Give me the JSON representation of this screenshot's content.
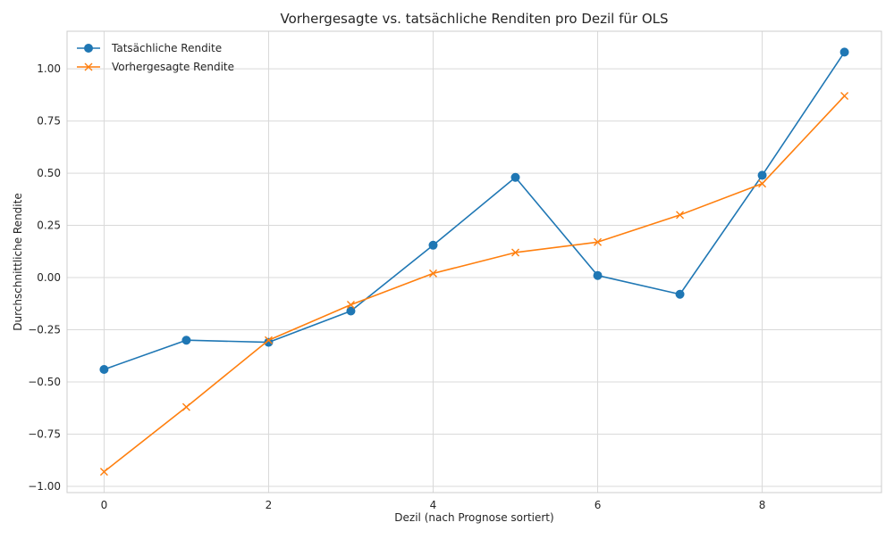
{
  "chart_data": {
    "type": "line",
    "title": "Vorhergesagte vs. tatsächliche Renditen pro Dezil für OLS",
    "xlabel": "Dezil (nach Prognose sortiert)",
    "ylabel": "Durchschnittliche Rendite",
    "x": [
      0,
      1,
      2,
      3,
      4,
      5,
      6,
      7,
      8,
      9
    ],
    "xlim": [
      -0.45,
      9.45
    ],
    "ylim": [
      -1.03,
      1.18
    ],
    "xticks": [
      0,
      2,
      4,
      6,
      8
    ],
    "xtick_labels": [
      "0",
      "2",
      "4",
      "6",
      "8"
    ],
    "yticks": [
      -1.0,
      -0.75,
      -0.5,
      -0.25,
      0.0,
      0.25,
      0.5,
      0.75,
      1.0
    ],
    "ytick_labels": [
      "−1.00",
      "−0.75",
      "−0.50",
      "−0.25",
      "0.00",
      "0.25",
      "0.50",
      "0.75",
      "1.00"
    ],
    "grid": true,
    "legend_position": "top-left",
    "series": [
      {
        "name": "Tatsächliche Rendite",
        "marker": "circle",
        "color": "#1f77b4",
        "values": [
          -0.44,
          -0.3,
          -0.31,
          -0.16,
          0.155,
          0.48,
          0.01,
          -0.08,
          0.49,
          1.08
        ]
      },
      {
        "name": "Vorhergesagte Rendite",
        "marker": "x",
        "color": "#ff7f0e",
        "values": [
          -0.93,
          -0.62,
          -0.3,
          -0.13,
          0.02,
          0.12,
          0.17,
          0.3,
          0.45,
          0.87
        ]
      }
    ]
  }
}
